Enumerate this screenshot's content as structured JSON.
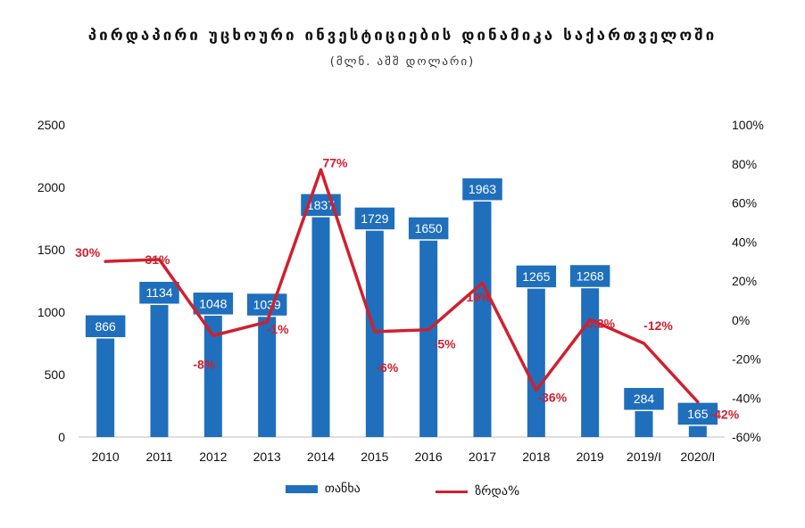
{
  "chart_data": {
    "type": "bar",
    "title": "პირდაპირი უცხოური ინვესტიციების დინამიკა საქართველოში",
    "subtitle": "(მლნ. აშშ დოლარი)",
    "categories": [
      "2010",
      "2011",
      "2012",
      "2013",
      "2014",
      "2015",
      "2016",
      "2017",
      "2018",
      "2019",
      "2019/I",
      "2020/I"
    ],
    "series": [
      {
        "name": "თანხა",
        "type": "bar",
        "axis": "left",
        "color": "#1f6fbd",
        "values": [
          866,
          1134,
          1048,
          1039,
          1837,
          1729,
          1650,
          1963,
          1265,
          1268,
          284,
          165
        ],
        "labels": [
          "866",
          "1134",
          "1048",
          "1039",
          "1837",
          "1729",
          "1650",
          "1963",
          "1265",
          "1268",
          "284",
          "165"
        ]
      },
      {
        "name": "ზრდა%",
        "type": "line",
        "axis": "right",
        "color": "#d0202e",
        "values": [
          30,
          31,
          -8,
          -1,
          77,
          -6,
          -5,
          19,
          -36,
          0.2,
          -12,
          -42
        ],
        "labels": [
          "30%",
          "31%",
          "-8%",
          "-1%",
          "77%",
          "-6%",
          "-5%",
          "19%",
          "-36%",
          "0.2%",
          "-12%",
          "-42%"
        ]
      }
    ],
    "ylim_left": [
      0,
      2500
    ],
    "yticks_left": [
      "0",
      "500",
      "1000",
      "1500",
      "2000",
      "2500"
    ],
    "ylim_right": [
      -60,
      100
    ],
    "yticks_right": [
      "-60%",
      "-40%",
      "-20%",
      "0%",
      "20%",
      "40%",
      "60%",
      "80%",
      "100%"
    ],
    "grid": false,
    "legend_position": "bottom"
  }
}
